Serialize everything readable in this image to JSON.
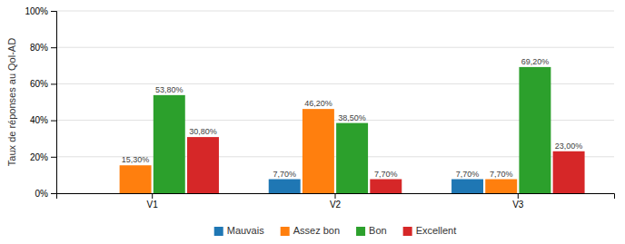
{
  "chart_data": {
    "type": "bar",
    "ylabel": "Taux de réponses au Qol-AD",
    "categories": [
      "V1",
      "V2",
      "V3"
    ],
    "series": [
      {
        "name": "Mauvais",
        "values": [
          0.0,
          7.7,
          7.7
        ],
        "value_labels": [
          null,
          "7,70%",
          "7,70%"
        ]
      },
      {
        "name": "Assez bon",
        "values": [
          15.3,
          46.2,
          7.7
        ],
        "value_labels": [
          "15,30%",
          "46,20%",
          "7,70%"
        ]
      },
      {
        "name": "Bon",
        "values": [
          53.8,
          38.5,
          69.2
        ],
        "value_labels": [
          "53,80%",
          "38,50%",
          "69,20%"
        ]
      },
      {
        "name": "Excellent",
        "values": [
          30.8,
          7.7,
          23.0
        ],
        "value_labels": [
          "30,80%",
          "7,70%",
          "23,00%"
        ]
      }
    ],
    "ylim": [
      0,
      100
    ],
    "yticks": [
      {
        "value": 0,
        "label": "0%"
      },
      {
        "value": 20,
        "label": "20%"
      },
      {
        "value": 40,
        "label": "40%"
      },
      {
        "value": 60,
        "label": "60%"
      },
      {
        "value": 80,
        "label": "80%"
      },
      {
        "value": 100,
        "label": "100%"
      }
    ],
    "grid": true,
    "legend": "bottom",
    "data_labels": true
  }
}
